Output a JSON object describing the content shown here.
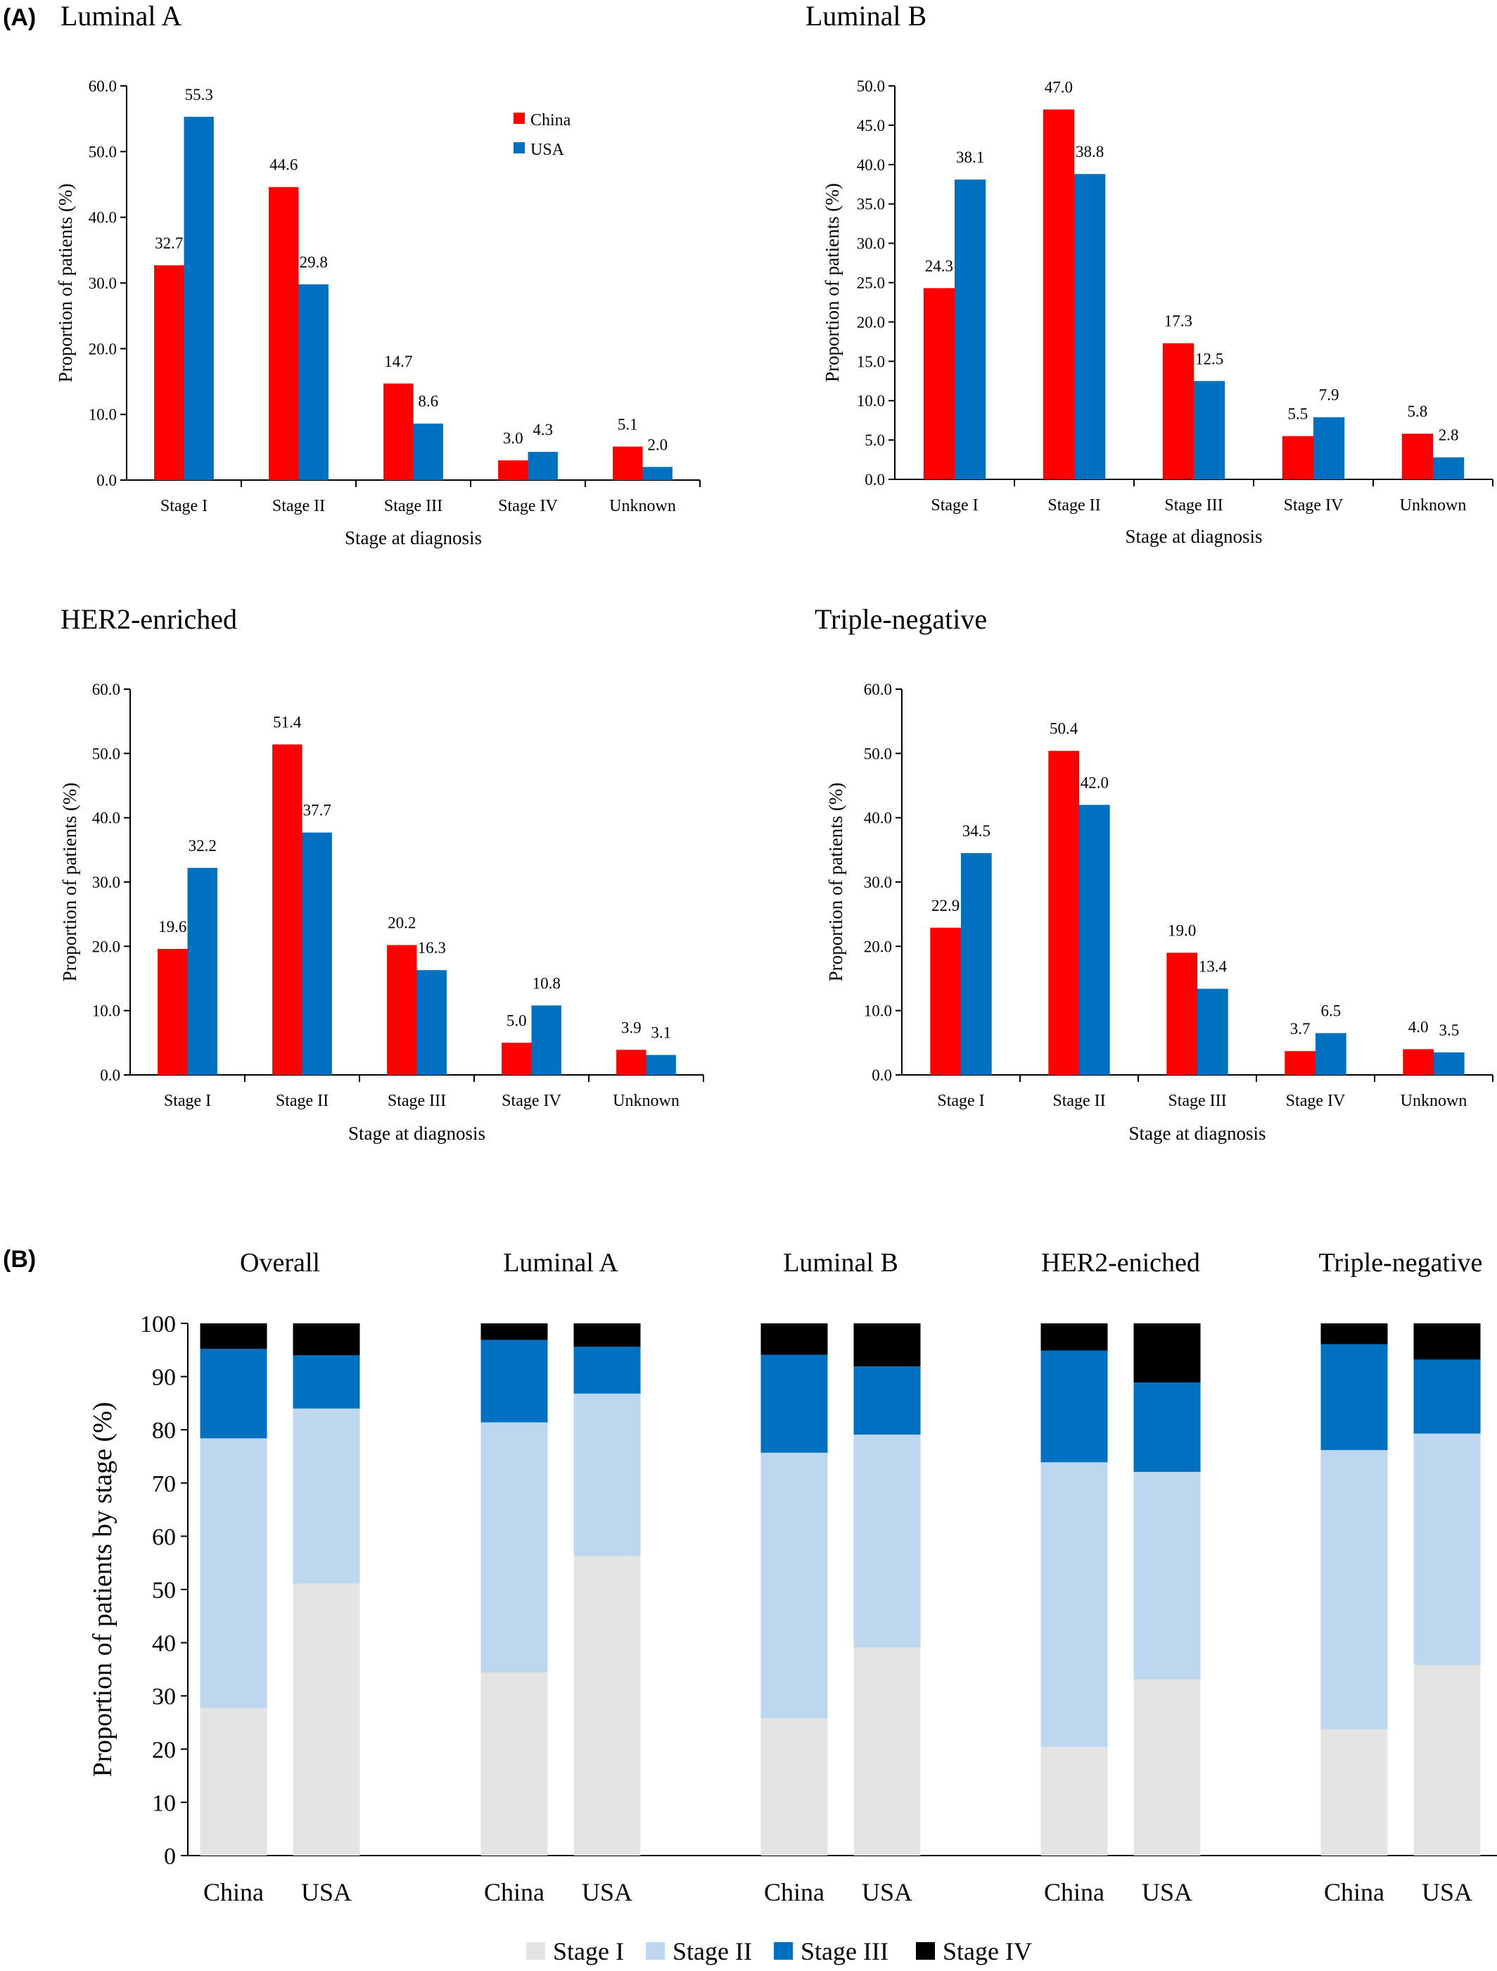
{
  "figure": {
    "panel_a_label": "(A)",
    "panel_b_label": "(B)"
  },
  "colors": {
    "china": "#ff0000",
    "usa": "#0070c0",
    "stage1": "#e4e4e4",
    "stage2": "#bdd7ee",
    "stage3": "#0070c0",
    "stage4": "#000000"
  },
  "chart_data": [
    {
      "type": "bar",
      "title": "Luminal A",
      "categories": [
        "Stage I",
        "Stage II",
        "Stage III",
        "Stage IV",
        "Unknown"
      ],
      "series": [
        {
          "name": "China",
          "values": [
            32.7,
            44.6,
            14.7,
            3.0,
            5.1
          ],
          "labels": [
            "32.7",
            "44.6",
            "14.7",
            "3.0",
            "5.1"
          ]
        },
        {
          "name": "USA",
          "values": [
            55.3,
            29.8,
            8.6,
            4.3,
            2.0
          ],
          "labels": [
            "55.3",
            "29.8",
            "8.6",
            "4.3",
            "2.0"
          ]
        }
      ],
      "xlabel": "Stage at diagnosis",
      "ylabel": "Proportion of patients (%)",
      "ylim": [
        0,
        60
      ],
      "yticks": [
        "0.0",
        "10.0",
        "20.0",
        "30.0",
        "40.0",
        "50.0",
        "60.0"
      ],
      "legend": "top-right"
    },
    {
      "type": "bar",
      "title": "Luminal B",
      "categories": [
        "Stage I",
        "Stage II",
        "Stage III",
        "Stage IV",
        "Unknown"
      ],
      "series": [
        {
          "name": "China",
          "values": [
            24.3,
            47.0,
            17.3,
            5.5,
            5.8
          ],
          "labels": [
            "24.3",
            "47.0",
            "17.3",
            "5.5",
            "5.8"
          ]
        },
        {
          "name": "USA",
          "values": [
            38.1,
            38.8,
            12.5,
            7.9,
            2.8
          ],
          "labels": [
            "38.1",
            "38.8",
            "12.5",
            "7.9",
            "2.8"
          ]
        }
      ],
      "xlabel": "Stage at diagnosis",
      "ylabel": "Proportion of patients (%)",
      "ylim": [
        0,
        50
      ],
      "yticks": [
        "0.0",
        "5.0",
        "10.0",
        "15.0",
        "20.0",
        "25.0",
        "30.0",
        "35.0",
        "40.0",
        "45.0",
        "50.0"
      ]
    },
    {
      "type": "bar",
      "title": "HER2-enriched",
      "categories": [
        "Stage I",
        "Stage II",
        "Stage III",
        "Stage IV",
        "Unknown"
      ],
      "series": [
        {
          "name": "China",
          "values": [
            19.6,
            51.4,
            20.2,
            5.0,
            3.9
          ],
          "labels": [
            "19.6",
            "51.4",
            "20.2",
            "5.0",
            "3.9"
          ]
        },
        {
          "name": "USA",
          "values": [
            32.2,
            37.7,
            16.3,
            10.8,
            3.1
          ],
          "labels": [
            "32.2",
            "37.7",
            "16.3",
            "10.8",
            "3.1"
          ]
        }
      ],
      "xlabel": "Stage at diagnosis",
      "ylabel": "Proportion of patients (%)",
      "ylim": [
        0,
        60
      ],
      "yticks": [
        "0.0",
        "10.0",
        "20.0",
        "30.0",
        "40.0",
        "50.0",
        "60.0"
      ]
    },
    {
      "type": "bar",
      "title": "Triple-negative",
      "categories": [
        "Stage I",
        "Stage II",
        "Stage III",
        "Stage IV",
        "Unknown"
      ],
      "series": [
        {
          "name": "China",
          "values": [
            22.9,
            50.4,
            19.0,
            3.7,
            4.0
          ],
          "labels": [
            "22.9",
            "50.4",
            "19.0",
            "3.7",
            "4.0"
          ]
        },
        {
          "name": "USA",
          "values": [
            34.5,
            42.0,
            13.4,
            6.5,
            3.5
          ],
          "labels": [
            "34.5",
            "42.0",
            "13.4",
            "6.5",
            "3.5"
          ]
        }
      ],
      "xlabel": "Stage at diagnosis",
      "ylabel": "Proportion of patients (%)",
      "ylim": [
        0,
        60
      ],
      "yticks": [
        "0.0",
        "10.0",
        "20.0",
        "30.0",
        "40.0",
        "50.0",
        "60.0"
      ]
    },
    {
      "type": "bar",
      "stacked": true,
      "group_titles": [
        "Overall",
        "Luminal A",
        "Luminal B",
        "HER2-eniched",
        "Triple-negative"
      ],
      "bar_labels": [
        "China",
        "USA"
      ],
      "series": [
        {
          "name": "Stage I",
          "values": [
            [
              27.7,
              51.1
            ],
            [
              34.4,
              56.3
            ],
            [
              25.8,
              39.1
            ],
            [
              20.4,
              33.1
            ],
            [
              23.7,
              35.8
            ]
          ]
        },
        {
          "name": "Stage II",
          "values": [
            [
              50.7,
              32.9
            ],
            [
              47.0,
              30.5
            ],
            [
              49.9,
              40.0
            ],
            [
              53.5,
              39.0
            ],
            [
              52.5,
              43.5
            ]
          ]
        },
        {
          "name": "Stage III",
          "values": [
            [
              16.8,
              10.0
            ],
            [
              15.5,
              8.8
            ],
            [
              18.4,
              12.8
            ],
            [
              21.0,
              16.8
            ],
            [
              19.9,
              13.9
            ]
          ]
        },
        {
          "name": "Stage IV",
          "values": [
            [
              4.8,
              6.0
            ],
            [
              3.1,
              4.4
            ],
            [
              5.9,
              8.1
            ],
            [
              5.1,
              11.1
            ],
            [
              3.9,
              6.8
            ]
          ]
        }
      ],
      "ylabel": "Proportion of patients by stage (%)",
      "ylim": [
        0,
        100
      ],
      "yticks": [
        "0",
        "10",
        "20",
        "30",
        "40",
        "50",
        "60",
        "70",
        "80",
        "90",
        "100"
      ],
      "legend": "bottom-center"
    }
  ]
}
